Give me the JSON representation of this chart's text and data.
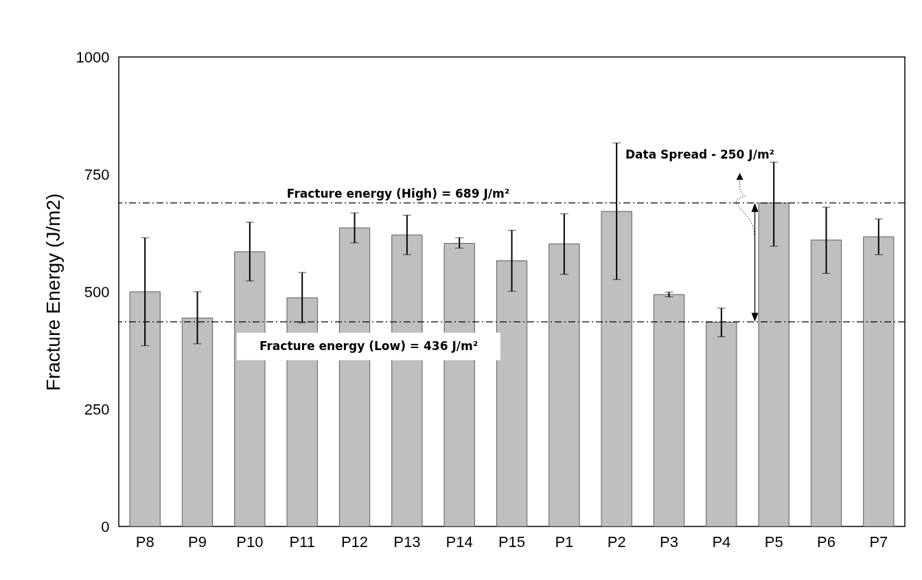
{
  "chart_data": {
    "type": "bar",
    "ylabel": "Fracture Energy (J/m2)",
    "categories": [
      "P8",
      "P9",
      "P10",
      "P11",
      "P12",
      "P13",
      "P14",
      "P15",
      "P1",
      "P2",
      "P3",
      "P4",
      "P5",
      "P6",
      "P7"
    ],
    "values": [
      500,
      444,
      585,
      487,
      636,
      621,
      603,
      566,
      602,
      671,
      494,
      435,
      689,
      610,
      617
    ],
    "errors": [
      [
        385,
        615
      ],
      [
        389,
        500
      ],
      [
        523,
        648
      ],
      [
        434,
        541
      ],
      [
        604,
        668
      ],
      [
        579,
        663
      ],
      [
        593,
        615
      ],
      [
        501,
        631
      ],
      [
        537,
        666
      ],
      [
        526,
        817
      ],
      [
        489,
        499
      ],
      [
        404,
        465
      ],
      [
        597,
        776
      ],
      [
        539,
        680
      ],
      [
        579,
        655
      ]
    ],
    "color": "#bfbfbf",
    "ylim": [
      0,
      1000
    ],
    "yticks": [
      0,
      250,
      500,
      750,
      1000
    ],
    "grid": false,
    "ref_lines": [
      {
        "axis": "y",
        "value": 689,
        "label": "Fracture energy (High) = 689 J/m²",
        "line_style": "dashdot"
      },
      {
        "axis": "y",
        "value": 436,
        "label": "Fracture energy (Low) = 436 J/m²",
        "line_style": "dashdot"
      }
    ],
    "annotations": [
      "Data Spread - 250 J/m²"
    ]
  }
}
